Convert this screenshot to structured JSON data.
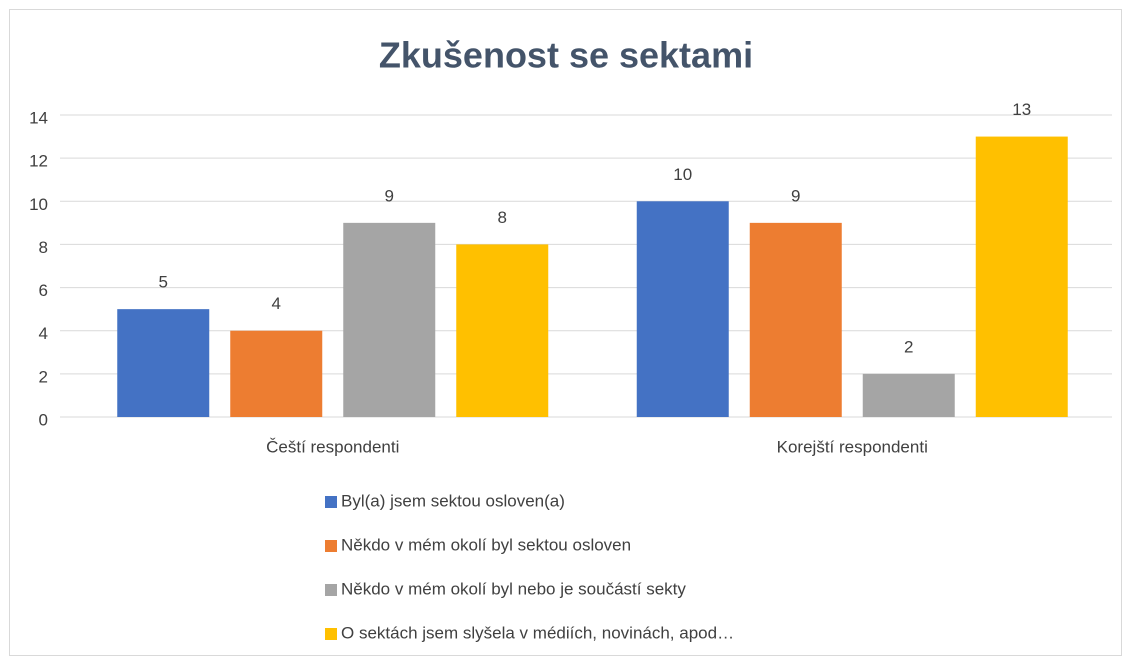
{
  "chart_data": {
    "type": "bar",
    "title": "Zkušenost se sektami",
    "categories": [
      "Čeští respondenti",
      "Korejští respondenti"
    ],
    "series": [
      {
        "name": "Byl(a) jsem sektou osloven(a)",
        "color": "#4472c4",
        "values": [
          5,
          10
        ]
      },
      {
        "name": "Někdo v mém okolí byl sektou osloven",
        "color": "#ed7d31",
        "values": [
          4,
          9
        ]
      },
      {
        "name": "Někdo v mém okolí byl nebo je součástí sekty",
        "color": "#a5a5a5",
        "values": [
          9,
          2
        ]
      },
      {
        "name": "O sektách jsem slyšela v médiích, novinách, apod…",
        "color": "#ffc000",
        "values": [
          8,
          13
        ]
      }
    ],
    "ylim": [
      0,
      14
    ],
    "yticks": [
      0,
      2,
      4,
      6,
      8,
      10,
      12,
      14
    ],
    "grid": true,
    "legend": "bottom"
  }
}
